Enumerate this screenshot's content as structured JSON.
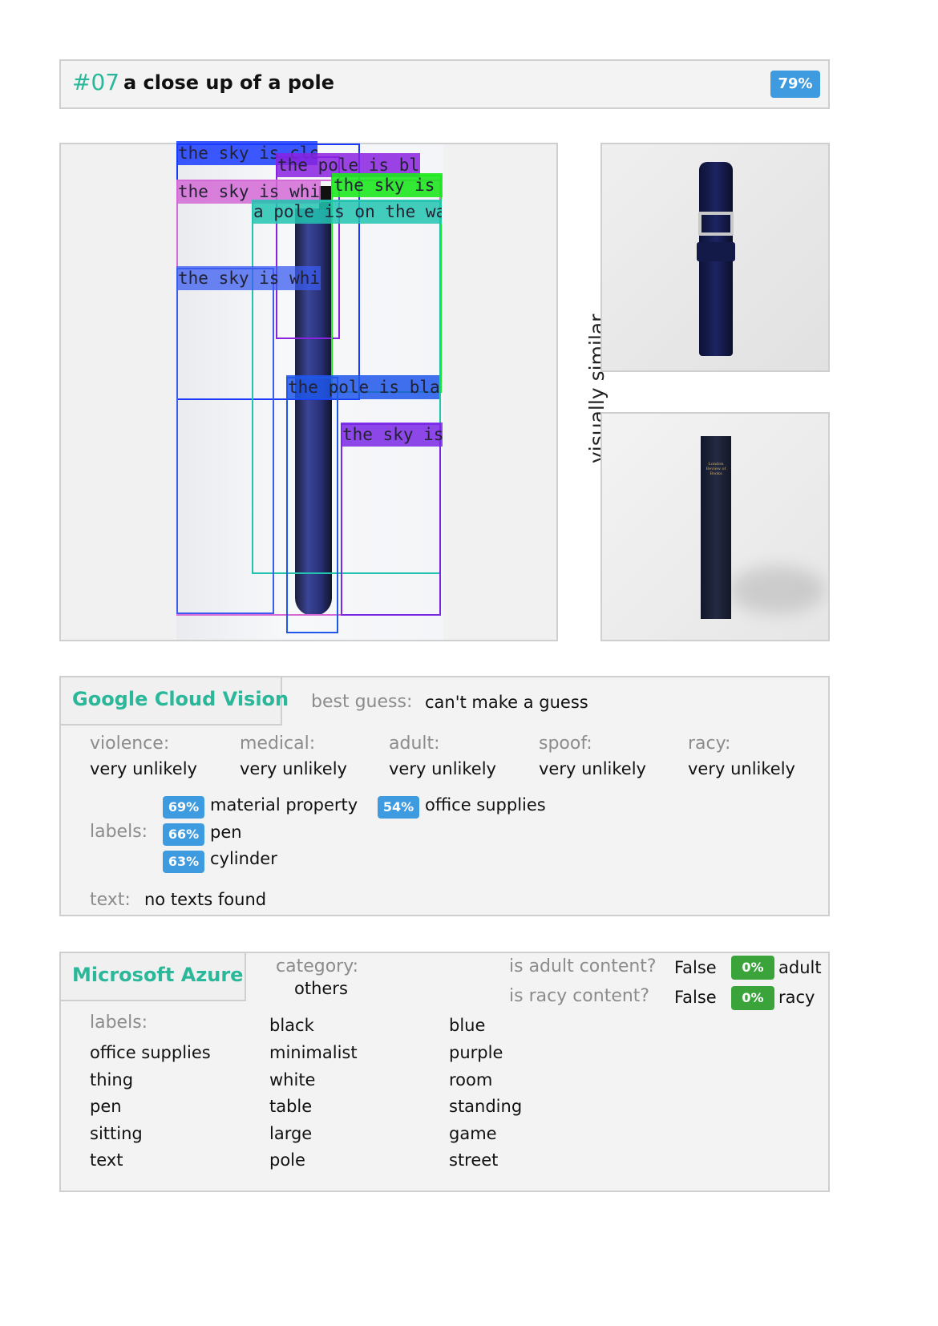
{
  "header": {
    "number": "#07",
    "caption": "a close up of a pole",
    "score": "79%"
  },
  "annotations": [
    {
      "text": "the sky is clear",
      "color": "#1a3bff"
    },
    {
      "text": "the pole is blue",
      "color": "#8a22e0"
    },
    {
      "text": "the sky is white",
      "color": "#d36ad6"
    },
    {
      "text": "the sky is w",
      "color": "#1ee81e"
    },
    {
      "text": "a pole is on the wall",
      "color": "#22c4b0"
    },
    {
      "text": "the sky is white",
      "color": "#3b5cf0"
    },
    {
      "text": "the pole is black",
      "color": "#1f57ea"
    },
    {
      "text": "the sky is",
      "color": "#7a28e6"
    }
  ],
  "similar": {
    "label": "visually similar",
    "book_text": "London Review of Books"
  },
  "gcv": {
    "title": "Google Cloud Vision",
    "best_guess_label": "best guess:",
    "best_guess": "can't make a guess",
    "safe_search": [
      {
        "label": "violence:",
        "value": "very unlikely"
      },
      {
        "label": "medical:",
        "value": "very unlikely"
      },
      {
        "label": "adult:",
        "value": "very unlikely"
      },
      {
        "label": "spoof:",
        "value": "very unlikely"
      },
      {
        "label": "racy:",
        "value": "very unlikely"
      }
    ],
    "labels_label": "labels:",
    "labels": [
      {
        "score": "69%",
        "name": "material property"
      },
      {
        "score": "66%",
        "name": "pen"
      },
      {
        "score": "63%",
        "name": "cylinder"
      },
      {
        "score": "54%",
        "name": "office supplies"
      }
    ],
    "text_label": "text:",
    "text_value": "no texts found"
  },
  "azure": {
    "title": "Microsoft Azure",
    "category_label": "category:",
    "category": "others",
    "adult_q": "is adult content?",
    "adult_a": "False",
    "adult_score": "0%",
    "adult_tag": "adult",
    "racy_q": "is racy content?",
    "racy_a": "False",
    "racy_score": "0%",
    "racy_tag": "racy",
    "labels_label": "labels:",
    "col1": [
      "office supplies",
      "thing",
      "pen",
      "sitting",
      "text"
    ],
    "col2": [
      "black",
      "minimalist",
      "white",
      "table",
      "large",
      "pole"
    ],
    "col3": [
      "blue",
      "purple",
      "room",
      "standing",
      "game",
      "street"
    ]
  }
}
